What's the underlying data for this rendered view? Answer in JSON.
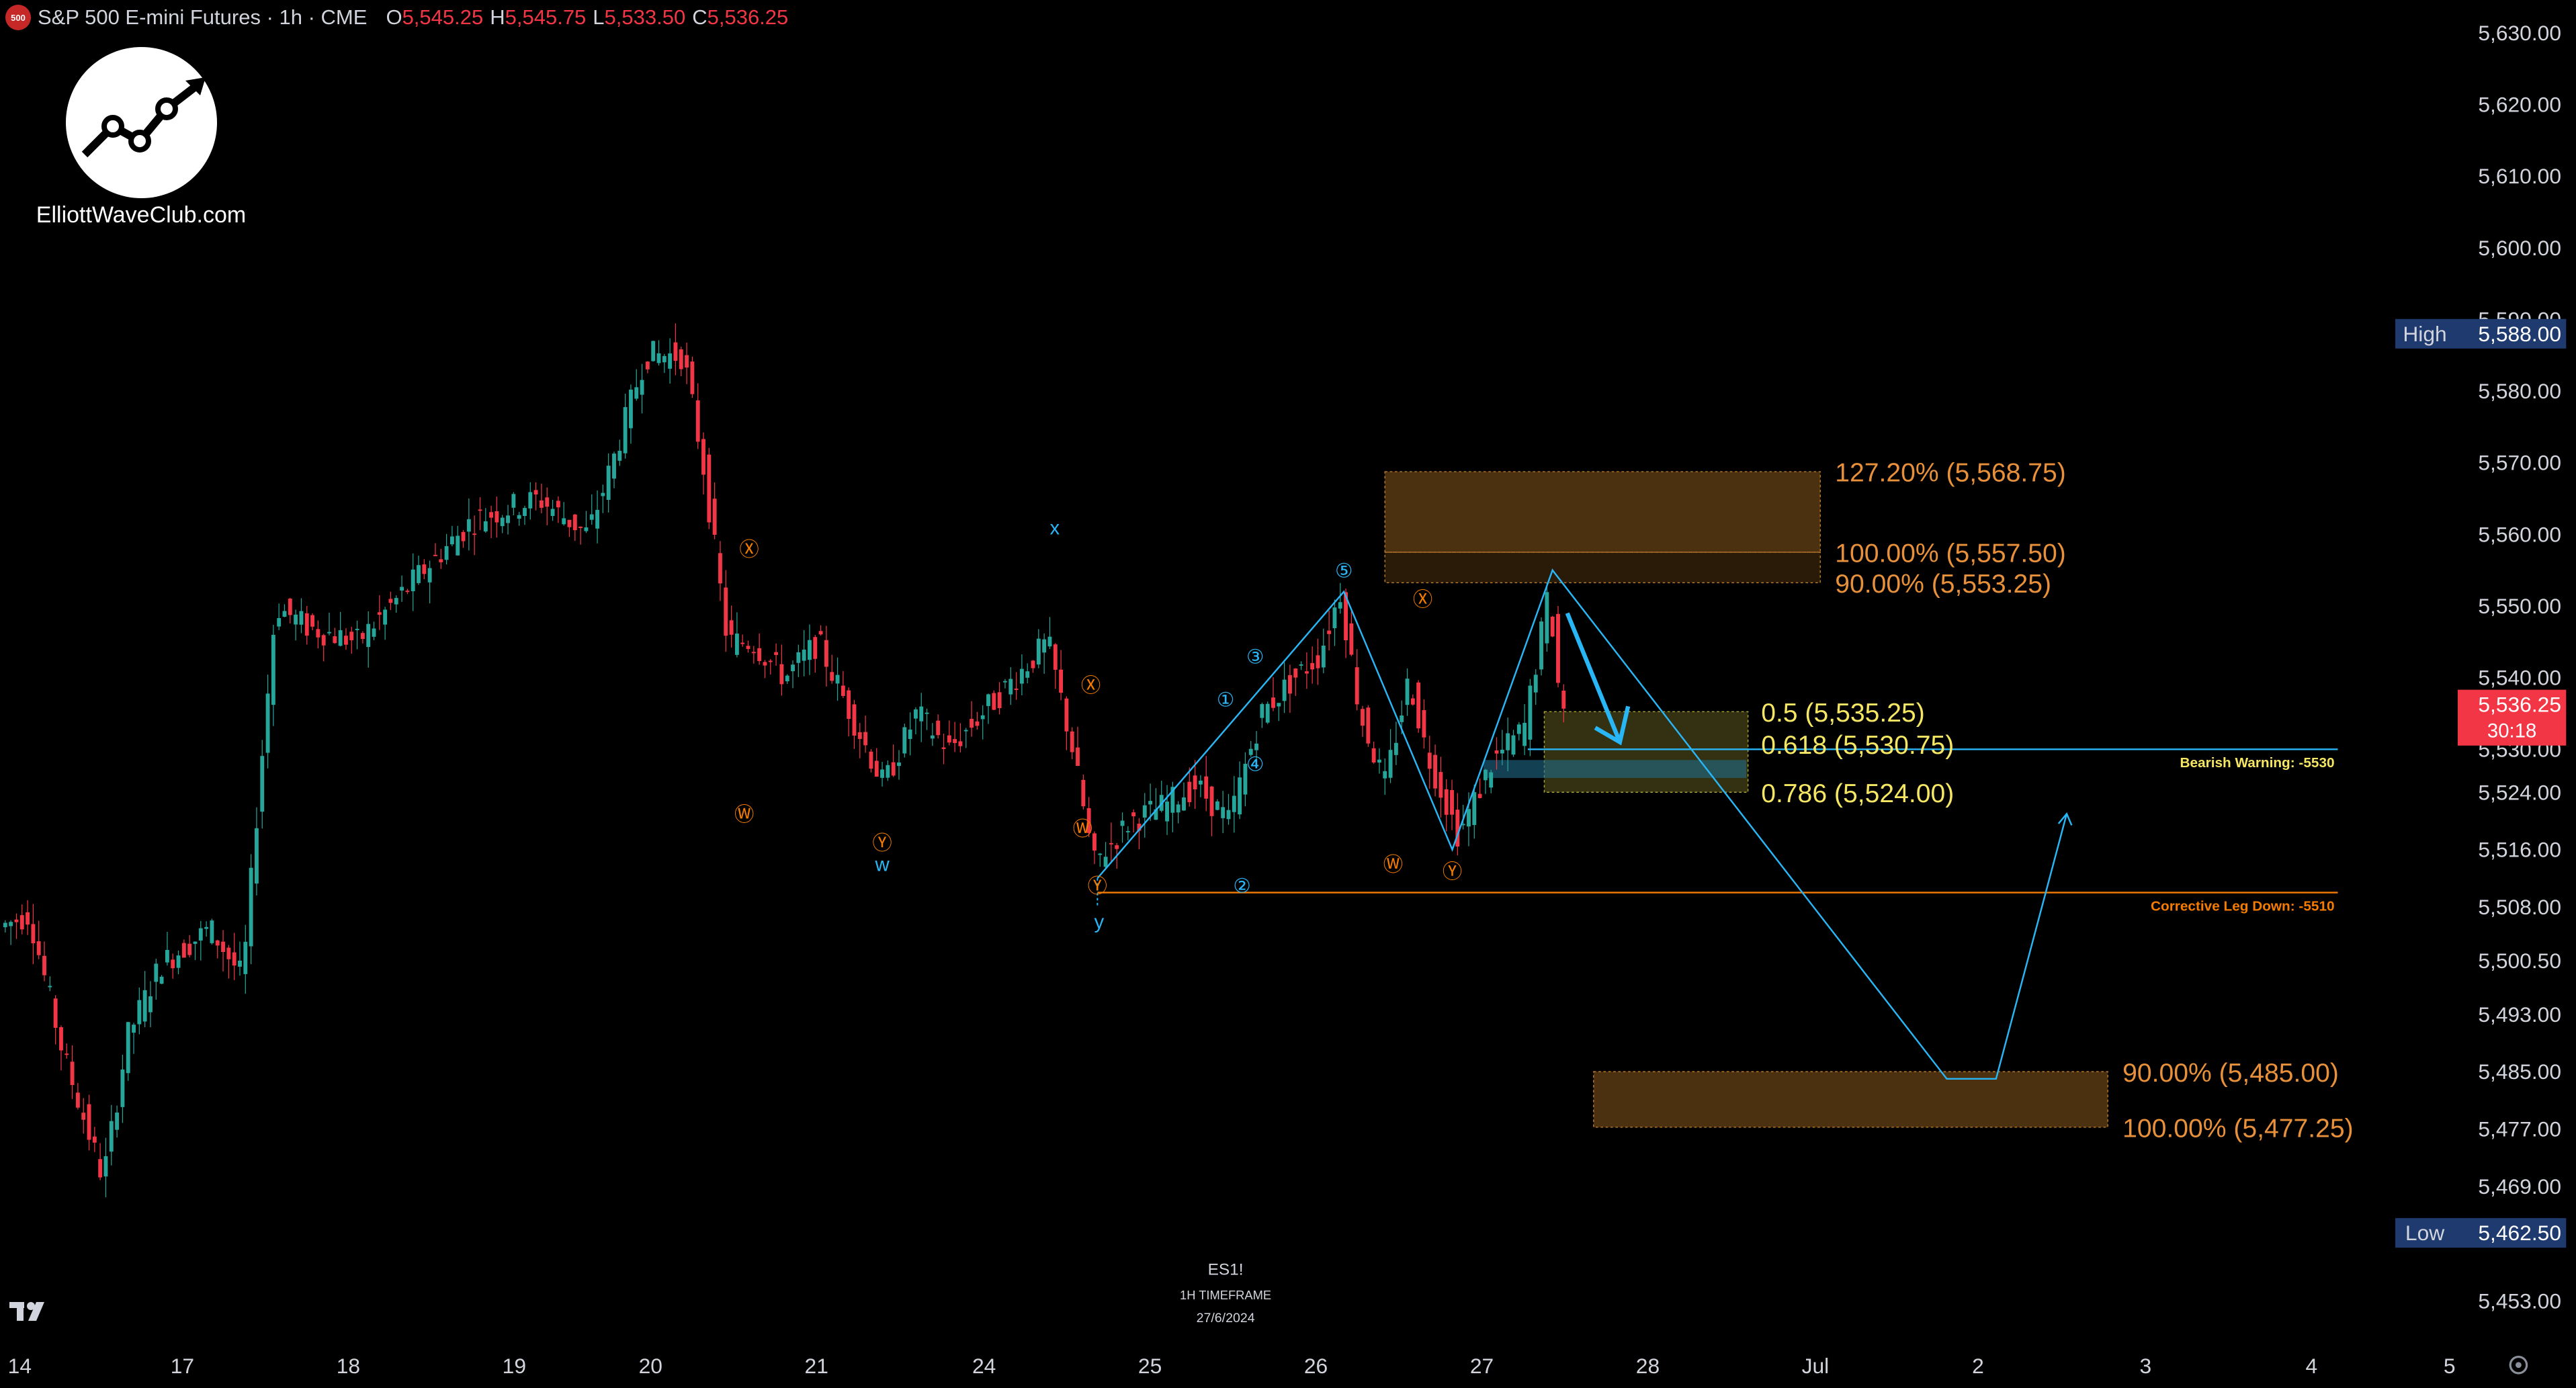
{
  "header": {
    "symbol_badge": "500",
    "title": "S&P 500 E-mini Futures · 1h · CME",
    "ohlc": [
      {
        "key": "O",
        "value": "5,545.25"
      },
      {
        "key": "H",
        "value": "5,545.75"
      },
      {
        "key": "L",
        "value": "5,533.50"
      },
      {
        "key": "C",
        "value": "5,536.25"
      }
    ]
  },
  "watermark": {
    "brand": "ElliottWaveClub.com"
  },
  "colors": {
    "background": "#000000",
    "up": "#26a69a",
    "down": "#f23645",
    "wave_cyan": "#29b6f6",
    "wave_orange": "#f57c00",
    "zone_brown": "#8a5a1e",
    "zone_olive": "#5c5a1f",
    "fib_yellow": "#f5e663",
    "price_tag_red": "#f23645",
    "high_low_tag": "#1e3a6e"
  },
  "chart_data": {
    "type": "candlestick",
    "title": "S&P 500 E-mini Futures · 1h · CME",
    "ylim": [
      5450,
      5633
    ],
    "y_ticks": [
      5453,
      5462.5,
      5469,
      5477,
      5485,
      5493,
      5500.5,
      5508,
      5516,
      5524,
      5530,
      5540,
      5550,
      5560,
      5570,
      5580,
      5590,
      5600,
      5610,
      5620,
      5630
    ],
    "y_tick_labels": [
      "5,453.00",
      "5,462.50",
      "5,469.00",
      "5,477.00",
      "5,485.00",
      "5,493.00",
      "5,500.50",
      "5,508.00",
      "5,516.00",
      "5,524.00",
      "5,530.00",
      "5,540.00",
      "5,550.00",
      "5,560.00",
      "5,570.00",
      "5,580.00",
      "5,590.00",
      "5,600.00",
      "5,610.00",
      "5,620.00",
      "5,630.00"
    ],
    "x_ticks": [
      "14",
      "17",
      "18",
      "19",
      "20",
      "21",
      "24",
      "25",
      "26",
      "27",
      "28",
      "Jul",
      "2",
      "3",
      "4",
      "5"
    ],
    "price_path": [
      [
        0,
        5505
      ],
      [
        20,
        5507
      ],
      [
        40,
        5488
      ],
      [
        65,
        5470
      ],
      [
        80,
        5490
      ],
      [
        100,
        5500
      ],
      [
        130,
        5505
      ],
      [
        150,
        5498
      ],
      [
        160,
        5525
      ],
      [
        170,
        5550
      ],
      [
        190,
        5547
      ],
      [
        220,
        5545
      ],
      [
        260,
        5555
      ],
      [
        290,
        5562
      ],
      [
        330,
        5565
      ],
      [
        360,
        5560
      ],
      [
        375,
        5570
      ],
      [
        395,
        5585
      ],
      [
        418,
        5585
      ],
      [
        430,
        5570
      ],
      [
        445,
        5545
      ],
      [
        460,
        5545
      ],
      [
        480,
        5540
      ],
      [
        500,
        5545
      ],
      [
        520,
        5535
      ],
      [
        540,
        5525
      ],
      [
        560,
        5535
      ],
      [
        580,
        5530
      ],
      [
        600,
        5535
      ],
      [
        620,
        5540
      ],
      [
        640,
        5545
      ],
      [
        655,
        5530
      ],
      [
        668,
        5514
      ],
      [
        690,
        5520
      ],
      [
        710,
        5522
      ],
      [
        730,
        5525
      ],
      [
        750,
        5520
      ],
      [
        770,
        5535
      ],
      [
        790,
        5540
      ],
      [
        805,
        5543
      ],
      [
        818,
        5552
      ],
      [
        830,
        5535
      ],
      [
        845,
        5525
      ],
      [
        860,
        5540
      ],
      [
        870,
        5530
      ],
      [
        880,
        5524
      ],
      [
        890,
        5518
      ],
      [
        910,
        5528
      ],
      [
        930,
        5533
      ],
      [
        945,
        5552
      ],
      [
        952,
        5536
      ]
    ],
    "last_price": {
      "label": "5,536.25",
      "countdown": "30:18",
      "value": 5536.25
    },
    "high_tag": {
      "label": "High",
      "value_label": "5,588.00",
      "value": 5588
    },
    "low_tag": {
      "label": "Low",
      "value_label": "5,462.50",
      "value": 5462.5
    },
    "zones": [
      {
        "top": 5568.75,
        "bottom": 5557.5,
        "x0": 843,
        "x1": 1108,
        "kind": "brown"
      },
      {
        "top": 5557.5,
        "bottom": 5553.25,
        "x0": 843,
        "x1": 1108,
        "kind": "brown-light"
      },
      {
        "top": 5535.25,
        "bottom": 5524,
        "x0": 940,
        "x1": 1064,
        "kind": "olive"
      },
      {
        "top": 5485,
        "bottom": 5477.25,
        "x0": 970,
        "x1": 1283,
        "kind": "brown"
      }
    ],
    "fib_labels": [
      {
        "text": "127.20% (5,568.75)",
        "price": 5568.75,
        "x": 1117,
        "color": "orange"
      },
      {
        "text": "100.00% (5,557.50)",
        "price": 5557.5,
        "x": 1117,
        "color": "orange"
      },
      {
        "text": "90.00% (5,553.25)",
        "price": 5553.25,
        "x": 1117,
        "color": "orange"
      },
      {
        "text": "0.5 (5,535.25)",
        "price": 5535.25,
        "x": 1072,
        "color": "yellow"
      },
      {
        "text": "0.618 (5,530.75)",
        "price": 5530.75,
        "x": 1072,
        "color": "yellow"
      },
      {
        "text": "0.786 (5,524.00)",
        "price": 5524,
        "x": 1072,
        "color": "yellow"
      },
      {
        "text": "90.00% (5,485.00)",
        "price": 5485,
        "x": 1292,
        "color": "orange"
      },
      {
        "text": "100.00% (5,477.25)",
        "price": 5477.25,
        "x": 1292,
        "color": "orange"
      }
    ],
    "lines": [
      {
        "price": 5530,
        "x0": 930,
        "x1": 1423,
        "label": "Bearish Warning: -5530",
        "color": "cyan"
      },
      {
        "price": 5510,
        "x0": 668,
        "x1": 1423,
        "label": "Corrective Leg Down: -5510",
        "color": "orange"
      }
    ],
    "wave_labels": [
      {
        "text": "x",
        "x": 642,
        "price": 5560,
        "style": "cyan"
      },
      {
        "text": "w",
        "x": 537,
        "price": 5513,
        "style": "cyan"
      },
      {
        "text": "y",
        "x": 669,
        "price": 5505,
        "style": "cyan"
      },
      {
        "text": "Ⓧ",
        "x": 456,
        "price": 5557,
        "style": "orange"
      },
      {
        "text": "Ⓦ",
        "x": 453,
        "price": 5520,
        "style": "orange"
      },
      {
        "text": "Ⓨ",
        "x": 537,
        "price": 5516,
        "style": "orange"
      },
      {
        "text": "Ⓧ",
        "x": 664,
        "price": 5538,
        "style": "orange"
      },
      {
        "text": "Ⓦ",
        "x": 659,
        "price": 5518,
        "style": "orange"
      },
      {
        "text": "Ⓨ",
        "x": 668,
        "price": 5510,
        "style": "orange"
      },
      {
        "text": "①",
        "x": 746,
        "price": 5536,
        "style": "cyan"
      },
      {
        "text": "②",
        "x": 756,
        "price": 5510,
        "style": "cyan"
      },
      {
        "text": "③",
        "x": 764,
        "price": 5542,
        "style": "cyan"
      },
      {
        "text": "④",
        "x": 764,
        "price": 5527,
        "style": "cyan"
      },
      {
        "text": "⑤",
        "x": 818,
        "price": 5554,
        "style": "cyan"
      },
      {
        "text": "Ⓧ",
        "x": 866,
        "price": 5550,
        "style": "orange"
      },
      {
        "text": "Ⓦ",
        "x": 848,
        "price": 5513,
        "style": "orange"
      },
      {
        "text": "Ⓨ",
        "x": 884,
        "price": 5512,
        "style": "orange"
      }
    ],
    "projection_path": [
      [
        668,
        5512
      ],
      [
        818,
        5552
      ],
      [
        884,
        5516
      ],
      [
        945,
        5555
      ],
      [
        1185,
        5484
      ],
      [
        1215,
        5484
      ],
      [
        1258,
        5521
      ]
    ],
    "annotation": {
      "line1": "ES1!",
      "line2": "1H TIMEFRAME",
      "line3": "27/6/2024"
    }
  }
}
